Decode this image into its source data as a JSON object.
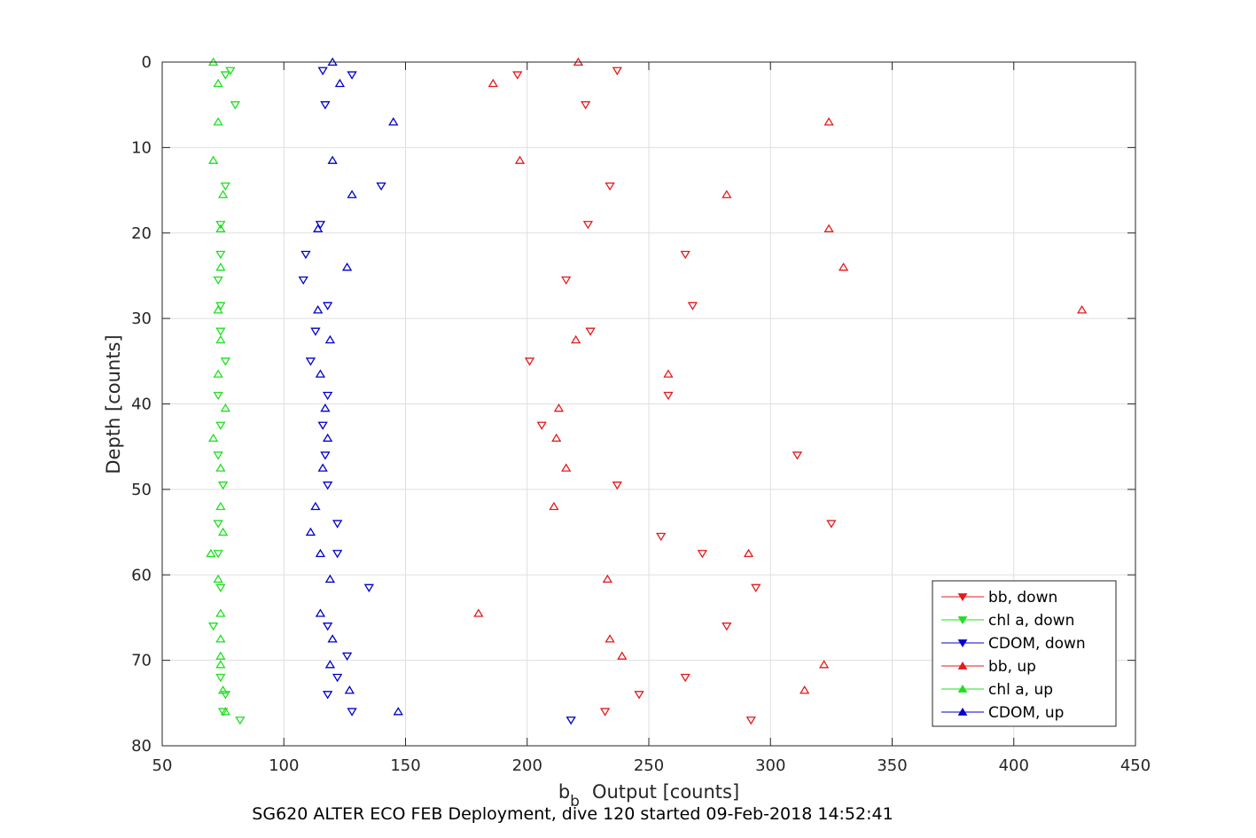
{
  "chart_data": {
    "type": "scatter",
    "title": "",
    "caption": "SG620 ALTER ECO FEB Deployment, dive 120 started 09-Feb-2018 14:52:41",
    "xlabel": "Output [counts]",
    "xlabel_symbol": "b",
    "xlabel_subscript": "b",
    "ylabel": "Depth [counts]",
    "xlim": [
      50,
      450
    ],
    "ylim": [
      0,
      80
    ],
    "y_reversed": true,
    "xticks": [
      50,
      100,
      150,
      200,
      250,
      300,
      350,
      400,
      450
    ],
    "yticks": [
      0,
      10,
      20,
      30,
      40,
      50,
      60,
      70,
      80
    ],
    "grid": true,
    "legend_position": "bottom-right",
    "series": [
      {
        "name": "bb, down",
        "color": "#e41a1c",
        "marker": "triangle-down",
        "points": [
          [
            196,
            1.5
          ],
          [
            237,
            1
          ],
          [
            224,
            5
          ],
          [
            234,
            14.5
          ],
          [
            225,
            19
          ],
          [
            265,
            22.5
          ],
          [
            216,
            25.5
          ],
          [
            268,
            28.5
          ],
          [
            226,
            31.5
          ],
          [
            201,
            35
          ],
          [
            258,
            39
          ],
          [
            206,
            42.5
          ],
          [
            311,
            46
          ],
          [
            237,
            49.5
          ],
          [
            325,
            54
          ],
          [
            255,
            55.5
          ],
          [
            272,
            57.5
          ],
          [
            294,
            61.5
          ],
          [
            282,
            66
          ],
          [
            265,
            72
          ],
          [
            246,
            74
          ],
          [
            232,
            76
          ],
          [
            292,
            77
          ]
        ]
      },
      {
        "name": "chl a, down",
        "color": "#1fdf1f",
        "marker": "triangle-down",
        "points": [
          [
            78,
            1
          ],
          [
            76,
            1.5
          ],
          [
            80,
            5
          ],
          [
            76,
            14.5
          ],
          [
            74,
            19
          ],
          [
            74,
            22.5
          ],
          [
            73,
            25.5
          ],
          [
            74,
            28.5
          ],
          [
            74,
            31.5
          ],
          [
            76,
            35
          ],
          [
            73,
            39
          ],
          [
            74,
            42.5
          ],
          [
            73,
            46
          ],
          [
            75,
            49.5
          ],
          [
            73,
            54
          ],
          [
            73,
            57.5
          ],
          [
            74,
            61.5
          ],
          [
            71,
            66
          ],
          [
            74,
            72
          ],
          [
            76,
            74
          ],
          [
            75,
            76
          ],
          [
            82,
            77
          ]
        ]
      },
      {
        "name": "CDOM, down",
        "color": "#0000cc",
        "marker": "triangle-down",
        "points": [
          [
            116,
            1
          ],
          [
            128,
            1.5
          ],
          [
            117,
            5
          ],
          [
            140,
            14.5
          ],
          [
            115,
            19
          ],
          [
            109,
            22.5
          ],
          [
            108,
            25.5
          ],
          [
            118,
            28.5
          ],
          [
            113,
            31.5
          ],
          [
            111,
            35
          ],
          [
            118,
            39
          ],
          [
            116,
            42.5
          ],
          [
            117,
            46
          ],
          [
            118,
            49.5
          ],
          [
            122,
            54
          ],
          [
            122,
            57.5
          ],
          [
            135,
            61.5
          ],
          [
            118,
            66
          ],
          [
            126,
            69.5
          ],
          [
            122,
            72
          ],
          [
            118,
            74
          ],
          [
            128,
            76
          ],
          [
            218,
            77
          ]
        ]
      },
      {
        "name": "bb, up",
        "color": "#e41a1c",
        "marker": "triangle-up",
        "points": [
          [
            221,
            0
          ],
          [
            186,
            2.5
          ],
          [
            324,
            7
          ],
          [
            197,
            11.5
          ],
          [
            282,
            15.5
          ],
          [
            324,
            19.5
          ],
          [
            330,
            24
          ],
          [
            428,
            29
          ],
          [
            220,
            32.5
          ],
          [
            258,
            36.5
          ],
          [
            213,
            40.5
          ],
          [
            212,
            44
          ],
          [
            216,
            47.5
          ],
          [
            211,
            52
          ],
          [
            291,
            57.5
          ],
          [
            233,
            60.5
          ],
          [
            180,
            64.5
          ],
          [
            234,
            67.5
          ],
          [
            239,
            69.5
          ],
          [
            322,
            70.5
          ],
          [
            314,
            73.5
          ]
        ]
      },
      {
        "name": "chl a, up",
        "color": "#1fdf1f",
        "marker": "triangle-up",
        "points": [
          [
            71,
            0
          ],
          [
            73,
            2.5
          ],
          [
            73,
            7
          ],
          [
            71,
            11.5
          ],
          [
            75,
            15.5
          ],
          [
            74,
            19.5
          ],
          [
            74,
            24
          ],
          [
            73,
            29
          ],
          [
            74,
            32.5
          ],
          [
            73,
            36.5
          ],
          [
            76,
            40.5
          ],
          [
            71,
            44
          ],
          [
            74,
            47.5
          ],
          [
            74,
            52
          ],
          [
            75,
            55
          ],
          [
            70,
            57.5
          ],
          [
            73,
            60.5
          ],
          [
            74,
            64.5
          ],
          [
            74,
            67.5
          ],
          [
            74,
            69.5
          ],
          [
            74,
            70.5
          ],
          [
            75,
            73.5
          ],
          [
            76,
            76
          ]
        ]
      },
      {
        "name": "CDOM, up",
        "color": "#0000cc",
        "marker": "triangle-up",
        "points": [
          [
            120,
            0
          ],
          [
            123,
            2.5
          ],
          [
            145,
            7
          ],
          [
            120,
            11.5
          ],
          [
            128,
            15.5
          ],
          [
            114,
            19.5
          ],
          [
            126,
            24
          ],
          [
            114,
            29
          ],
          [
            119,
            32.5
          ],
          [
            115,
            36.5
          ],
          [
            117,
            40.5
          ],
          [
            118,
            44
          ],
          [
            116,
            47.5
          ],
          [
            113,
            52
          ],
          [
            111,
            55
          ],
          [
            115,
            57.5
          ],
          [
            119,
            60.5
          ],
          [
            115,
            64.5
          ],
          [
            120,
            67.5
          ],
          [
            119,
            70.5
          ],
          [
            127,
            73.5
          ],
          [
            147,
            76
          ]
        ]
      }
    ]
  }
}
